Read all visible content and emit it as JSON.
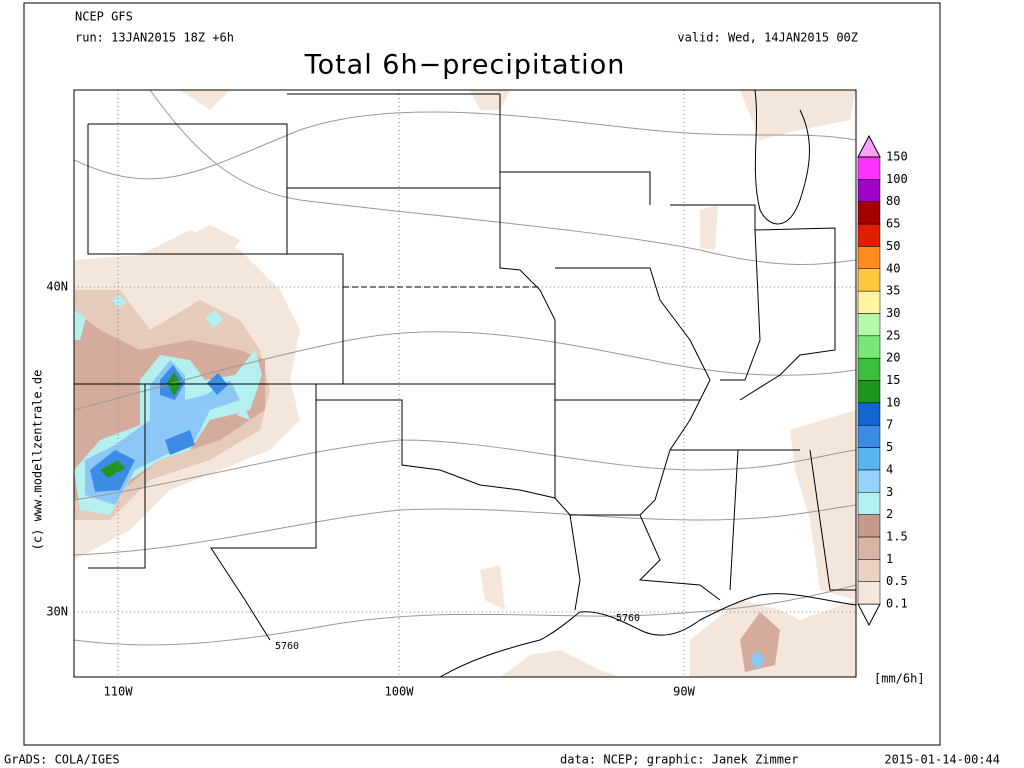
{
  "header": {
    "model": "NCEP GFS",
    "run": "run: 13JAN2015 18Z +6h",
    "valid": "valid: Wed, 14JAN2015 00Z",
    "title": "Total 6h−precipitation"
  },
  "map": {
    "lat_labels": [
      "40N",
      "30N"
    ],
    "lon_labels": [
      "110W",
      "100W",
      "90W"
    ],
    "contour_labels": [
      "5760",
      "5760"
    ],
    "watermark": "(c) www.modellzentrale.de"
  },
  "legend": {
    "levels": [
      0.1,
      0.5,
      1,
      1.5,
      2,
      3,
      4,
      5,
      7,
      10,
      15,
      20,
      25,
      30,
      35,
      40,
      50,
      65,
      80,
      100,
      150
    ],
    "unit": "[mm/6h]"
  },
  "footer": {
    "left": "GrADS: COLA/IGES",
    "center": "data: NCEP; graphic: Janek Zimmer",
    "right": "2015-01-14-00:44"
  }
}
